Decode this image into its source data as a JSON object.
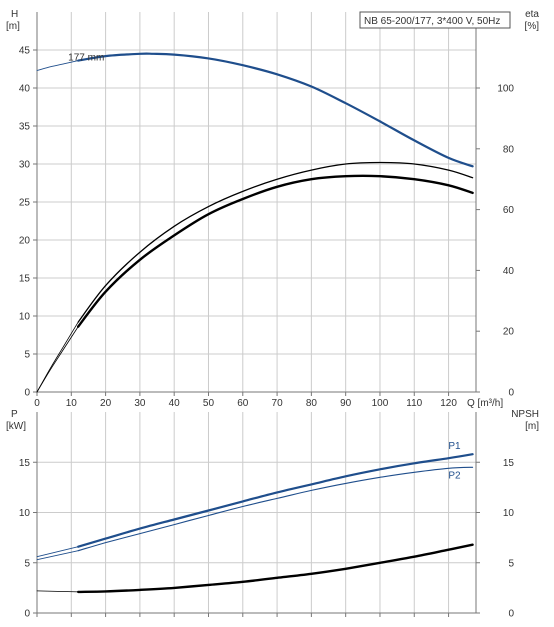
{
  "title": "NB 65-200/177, 3*400 V, 50Hz",
  "colors": {
    "blue": "#1f4e8c",
    "black": "#000000",
    "grid": "#cccccc",
    "axis": "#777777"
  },
  "chart_data": [
    {
      "type": "line",
      "title": "NB 65-200/177, 3*400 V, 50Hz",
      "xlabel": "Q [m³/h]",
      "xlim": [
        0,
        128
      ],
      "x_ticks": [
        0,
        10,
        20,
        30,
        40,
        50,
        60,
        70,
        80,
        90,
        100,
        110,
        120
      ],
      "y_left": {
        "label_line1": "H",
        "label_line2": "[m]",
        "lim": [
          0,
          50
        ],
        "ticks": [
          0,
          5,
          10,
          15,
          20,
          25,
          30,
          35,
          40,
          45
        ]
      },
      "y_right": {
        "label_line1": "eta",
        "label_line2": "[%]",
        "lim": [
          0,
          125
        ],
        "ticks": [
          0,
          20,
          40,
          60,
          80,
          100
        ]
      },
      "annotations": [
        {
          "text": "177 mm",
          "x": 12,
          "y": 43.5
        }
      ],
      "series": [
        {
          "axis": "left",
          "color": "blue",
          "width": 2.2,
          "x": [
            12,
            20,
            30,
            34,
            40,
            50,
            60,
            70,
            80,
            90,
            100,
            110,
            120,
            127
          ],
          "y": [
            43.6,
            44.2,
            44.5,
            44.5,
            44.4,
            43.9,
            43.0,
            41.8,
            40.2,
            38.0,
            35.6,
            33.1,
            30.8,
            29.7
          ]
        },
        {
          "axis": "left",
          "color": "blue",
          "width": 0.9,
          "style": "extension",
          "x": [
            0,
            4,
            8,
            12
          ],
          "y": [
            42.3,
            42.8,
            43.2,
            43.6
          ]
        },
        {
          "axis": "right",
          "color": "black",
          "width": 1.3,
          "x": [
            12,
            20,
            30,
            40,
            50,
            60,
            70,
            80,
            90,
            100,
            110,
            120,
            127
          ],
          "y": [
            23,
            35,
            46,
            54.5,
            61,
            66,
            70,
            73,
            75,
            75.5,
            75,
            73,
            70.5
          ]
        },
        {
          "axis": "right",
          "color": "black",
          "width": 2.4,
          "x": [
            12,
            20,
            30,
            40,
            50,
            60,
            70,
            80,
            90,
            100,
            110,
            120,
            127
          ],
          "y": [
            21.5,
            33,
            43.5,
            51.5,
            58.5,
            63.5,
            67.5,
            70,
            71,
            71,
            70,
            68,
            65.5
          ]
        },
        {
          "axis": "right",
          "color": "black",
          "width": 0.8,
          "style": "extension",
          "x": [
            0,
            4,
            8,
            12
          ],
          "y": [
            0,
            8,
            15.5,
            23
          ]
        },
        {
          "axis": "right",
          "color": "black",
          "width": 0.8,
          "style": "extension",
          "x": [
            0,
            4,
            8,
            12
          ],
          "y": [
            0,
            7.5,
            14.5,
            21.5
          ]
        }
      ]
    },
    {
      "type": "line",
      "x_ticks": [
        0,
        10,
        20,
        30,
        40,
        50,
        60,
        70,
        80,
        90,
        100,
        110,
        120
      ],
      "xlim": [
        0,
        128
      ],
      "y_left": {
        "label_line1": "P",
        "label_line2": "[kW]",
        "lim": [
          0,
          20
        ],
        "ticks": [
          0,
          5,
          10,
          15
        ]
      },
      "y_right": {
        "label_line1": "NPSH",
        "label_line2": "[m]",
        "lim": [
          0,
          20
        ],
        "ticks": [
          0,
          5,
          10,
          15
        ]
      },
      "series": [
        {
          "name": "P1",
          "axis": "left",
          "color": "blue",
          "width": 2.2,
          "x": [
            12,
            20,
            30,
            40,
            50,
            60,
            70,
            80,
            90,
            100,
            110,
            120,
            127
          ],
          "y": [
            6.6,
            7.4,
            8.4,
            9.3,
            10.2,
            11.1,
            12.0,
            12.8,
            13.6,
            14.3,
            14.9,
            15.4,
            15.8
          ]
        },
        {
          "name": "P2",
          "axis": "left",
          "color": "blue",
          "width": 1.1,
          "x": [
            12,
            20,
            30,
            40,
            50,
            60,
            70,
            80,
            90,
            100,
            110,
            120,
            127
          ],
          "y": [
            6.2,
            7.0,
            7.9,
            8.8,
            9.7,
            10.6,
            11.4,
            12.2,
            12.9,
            13.5,
            14.0,
            14.4,
            14.5
          ]
        },
        {
          "axis": "left",
          "color": "blue",
          "width": 0.8,
          "style": "extension",
          "x": [
            0,
            12
          ],
          "y": [
            5.6,
            6.6
          ]
        },
        {
          "axis": "left",
          "color": "blue",
          "width": 0.8,
          "style": "extension",
          "x": [
            0,
            12
          ],
          "y": [
            5.3,
            6.2
          ]
        },
        {
          "axis": "right",
          "color": "black",
          "width": 2.4,
          "x": [
            12,
            20,
            30,
            40,
            50,
            60,
            70,
            80,
            90,
            100,
            110,
            120,
            127
          ],
          "y": [
            2.1,
            2.15,
            2.3,
            2.5,
            2.8,
            3.1,
            3.5,
            3.9,
            4.4,
            5.0,
            5.6,
            6.3,
            6.8
          ]
        },
        {
          "axis": "right",
          "color": "black",
          "width": 0.8,
          "style": "extension",
          "x": [
            0,
            12
          ],
          "y": [
            2.2,
            2.1
          ]
        }
      ]
    }
  ]
}
